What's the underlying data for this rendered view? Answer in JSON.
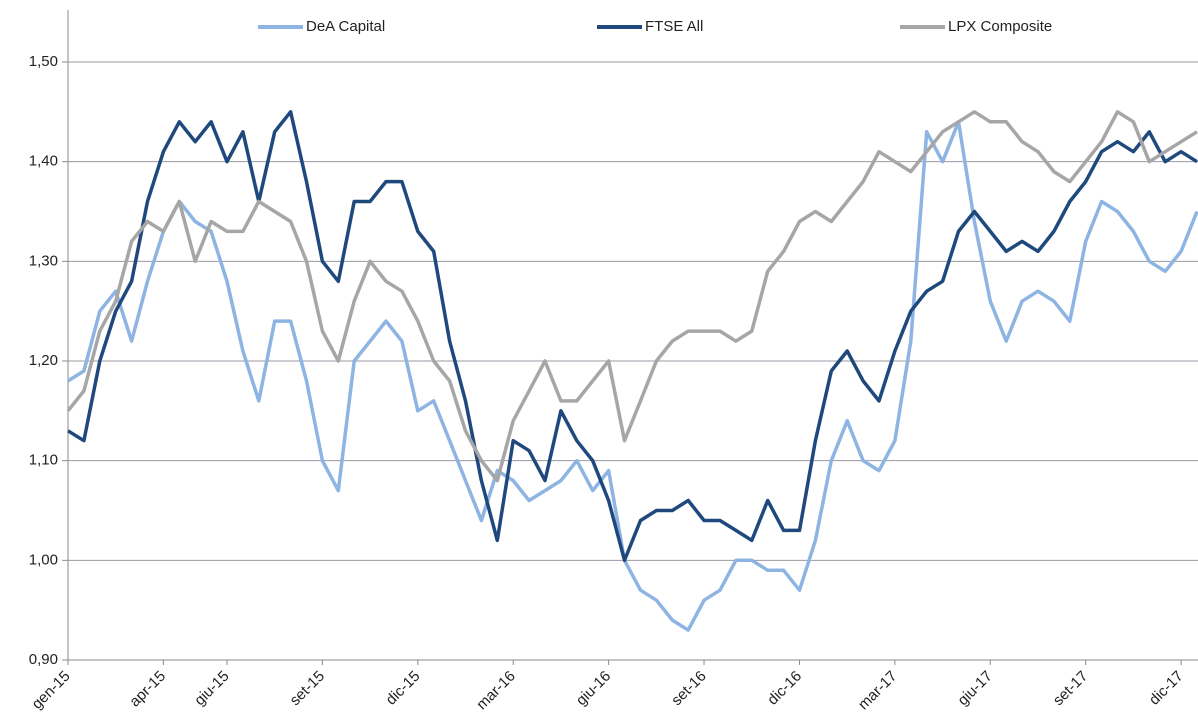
{
  "chart_data": {
    "type": "line",
    "categories": [
      "gen-15",
      null,
      null,
      null,
      null,
      null,
      "apr-15",
      null,
      null,
      null,
      "giu-15",
      null,
      null,
      null,
      null,
      null,
      "set-15",
      null,
      null,
      null,
      null,
      null,
      "dic-15",
      null,
      null,
      null,
      null,
      null,
      "mar-16",
      null,
      null,
      null,
      null,
      null,
      "giu-16",
      null,
      null,
      null,
      null,
      null,
      "set-16",
      null,
      null,
      null,
      null,
      null,
      "dic-16",
      null,
      null,
      null,
      null,
      null,
      "mar-17",
      null,
      null,
      null,
      null,
      null,
      "giu-17",
      null,
      null,
      null,
      null,
      null,
      "set-17",
      null,
      null,
      null,
      null,
      null,
      "dic-17",
      null
    ],
    "series": [
      {
        "name": "DeA Capital",
        "color": "#8db4e2",
        "values": [
          1.18,
          1.19,
          1.25,
          1.27,
          1.22,
          1.28,
          1.33,
          1.36,
          1.34,
          1.33,
          1.28,
          1.21,
          1.16,
          1.24,
          1.24,
          1.18,
          1.1,
          1.07,
          1.2,
          1.22,
          1.24,
          1.22,
          1.15,
          1.16,
          1.12,
          1.08,
          1.04,
          1.09,
          1.08,
          1.06,
          1.07,
          1.08,
          1.1,
          1.07,
          1.09,
          1.0,
          0.97,
          0.96,
          0.94,
          0.93,
          0.96,
          0.97,
          1.0,
          1.0,
          0.99,
          0.99,
          0.97,
          1.02,
          1.1,
          1.14,
          1.1,
          1.09,
          1.12,
          1.22,
          1.43,
          1.4,
          1.44,
          1.34,
          1.26,
          1.22,
          1.26,
          1.27,
          1.26,
          1.24,
          1.32,
          1.36,
          1.35,
          1.33,
          1.3,
          1.29,
          1.31,
          1.35
        ]
      },
      {
        "name": "FTSE All",
        "color": "#1f497d",
        "values": [
          1.13,
          1.12,
          1.2,
          1.25,
          1.28,
          1.36,
          1.41,
          1.44,
          1.42,
          1.44,
          1.4,
          1.43,
          1.36,
          1.43,
          1.45,
          1.38,
          1.3,
          1.28,
          1.36,
          1.36,
          1.38,
          1.38,
          1.33,
          1.31,
          1.22,
          1.16,
          1.08,
          1.02,
          1.12,
          1.11,
          1.08,
          1.15,
          1.12,
          1.1,
          1.06,
          1.0,
          1.04,
          1.05,
          1.05,
          1.06,
          1.04,
          1.04,
          1.03,
          1.02,
          1.06,
          1.03,
          1.03,
          1.12,
          1.19,
          1.21,
          1.18,
          1.16,
          1.21,
          1.25,
          1.27,
          1.28,
          1.33,
          1.35,
          1.33,
          1.31,
          1.32,
          1.31,
          1.33,
          1.36,
          1.38,
          1.41,
          1.42,
          1.41,
          1.43,
          1.4,
          1.41,
          1.4
        ]
      },
      {
        "name": "LPX Composite",
        "color": "#a6a6a6",
        "values": [
          1.15,
          1.17,
          1.23,
          1.26,
          1.32,
          1.34,
          1.33,
          1.36,
          1.3,
          1.34,
          1.33,
          1.33,
          1.36,
          1.35,
          1.34,
          1.3,
          1.23,
          1.2,
          1.26,
          1.3,
          1.28,
          1.27,
          1.24,
          1.2,
          1.18,
          1.13,
          1.1,
          1.08,
          1.14,
          1.17,
          1.2,
          1.16,
          1.16,
          1.18,
          1.2,
          1.12,
          1.16,
          1.2,
          1.22,
          1.23,
          1.23,
          1.23,
          1.22,
          1.23,
          1.29,
          1.31,
          1.34,
          1.35,
          1.34,
          1.36,
          1.38,
          1.41,
          1.4,
          1.39,
          1.41,
          1.43,
          1.44,
          1.45,
          1.44,
          1.44,
          1.42,
          1.41,
          1.39,
          1.38,
          1.4,
          1.42,
          1.45,
          1.44,
          1.4,
          1.41,
          1.42,
          1.43
        ]
      }
    ],
    "ylim": [
      0.9,
      1.5
    ],
    "yticks": [
      {
        "value": 0.9,
        "label": "0,90"
      },
      {
        "value": 1.0,
        "label": "1,00"
      },
      {
        "value": 1.1,
        "label": "1,10"
      },
      {
        "value": 1.2,
        "label": "1,20"
      },
      {
        "value": 1.3,
        "label": "1,30"
      },
      {
        "value": 1.4,
        "label": "1,40"
      },
      {
        "value": 1.5,
        "label": "1,50"
      }
    ],
    "grid": true,
    "legend": "top"
  }
}
